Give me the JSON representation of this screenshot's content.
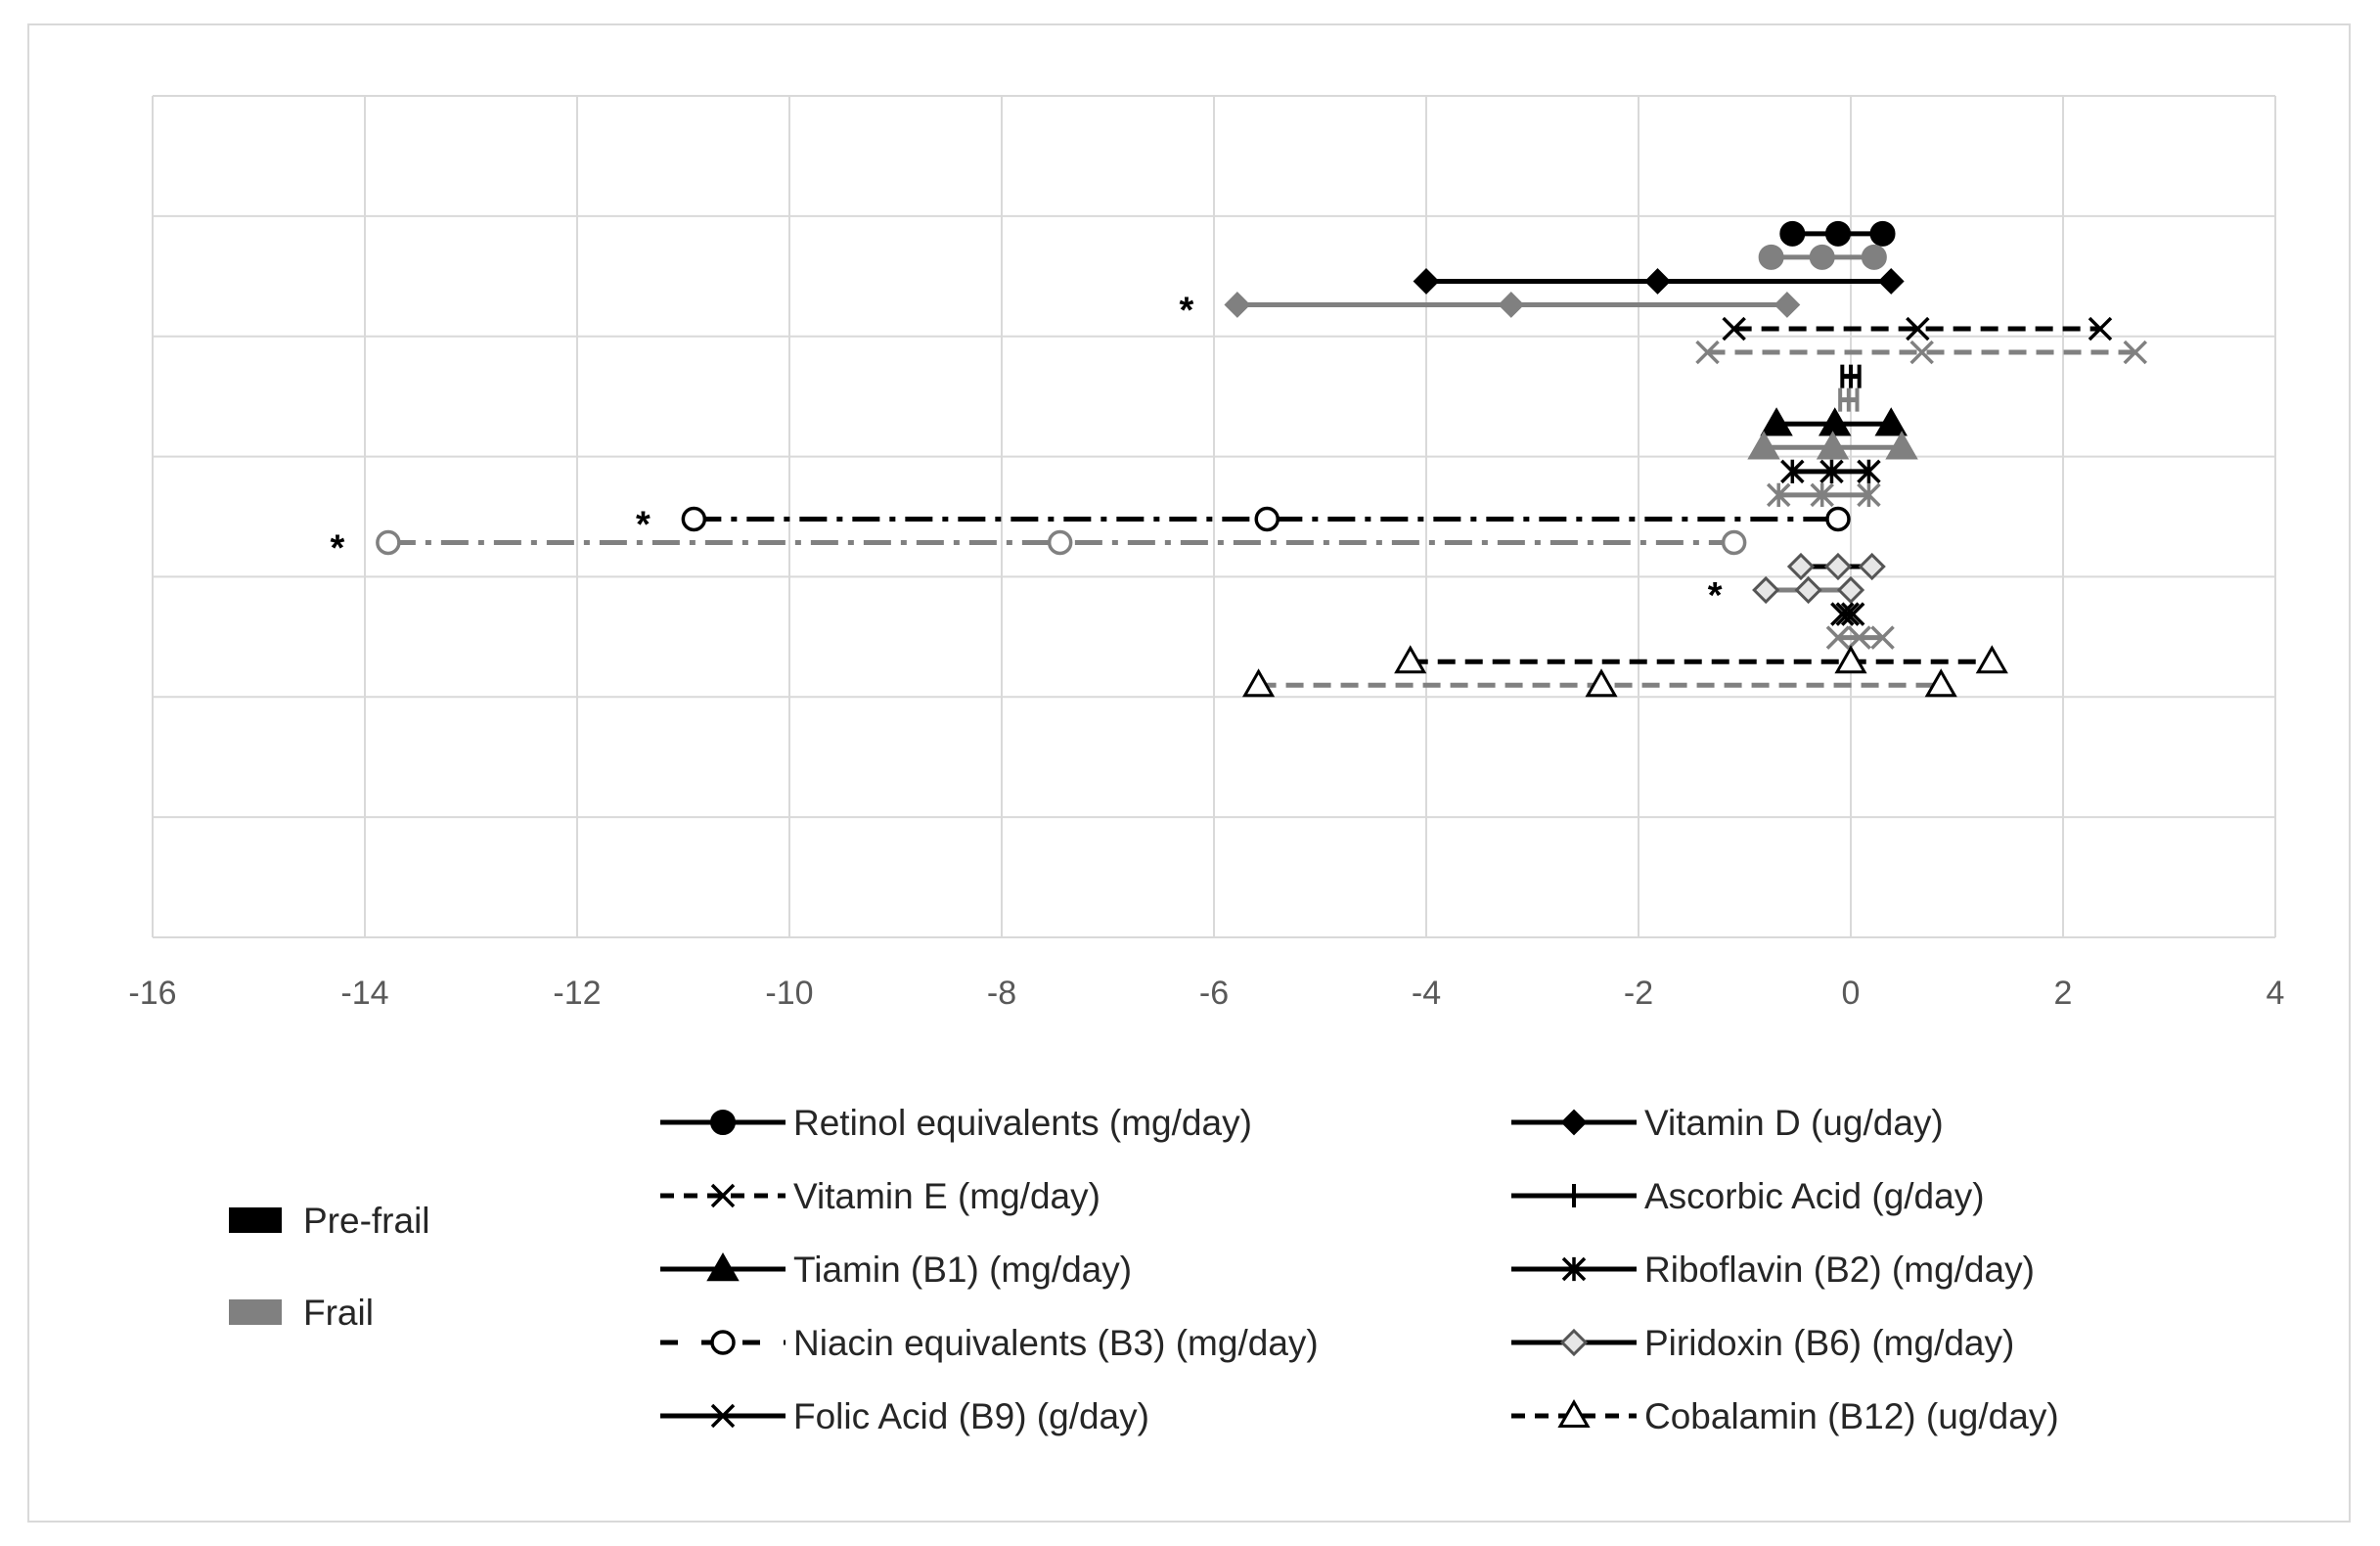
{
  "chart_data": {
    "type": "range-dot",
    "title": "",
    "xlabel": "",
    "ylabel": "",
    "xlim": [
      -16,
      4
    ],
    "x_ticks": [
      "-16",
      "-14",
      "-12",
      "-10",
      "-8",
      "-6",
      "-4",
      "-2",
      "0",
      "2",
      "4"
    ],
    "grid": true,
    "groups": [
      {
        "name": "Pre-frail",
        "color": "#000000"
      },
      {
        "name": "Frail",
        "color": "#808080"
      }
    ],
    "nutrients": [
      {
        "label": "Retinol equivalents (mg/day)",
        "marker": "circle-filled",
        "dash": "solid",
        "pre_frail": {
          "low": -0.55,
          "mean": -0.12,
          "high": 0.3,
          "significant": false
        },
        "frail": {
          "low": -0.75,
          "mean": -0.27,
          "high": 0.22,
          "significant": false
        }
      },
      {
        "label": "Vitamin D (ug/day)",
        "marker": "diamond-filled",
        "dash": "solid",
        "pre_frail": {
          "low": -4.0,
          "mean": -1.82,
          "high": 0.38,
          "significant": false
        },
        "frail": {
          "low": -5.78,
          "mean": -3.2,
          "high": -0.6,
          "significant": true
        }
      },
      {
        "label": "Vitamin E (mg/day)",
        "marker": "x",
        "dash": "dash",
        "pre_frail": {
          "low": -1.1,
          "mean": 0.63,
          "high": 2.35,
          "significant": false
        },
        "frail": {
          "low": -1.35,
          "mean": 0.67,
          "high": 2.68,
          "significant": false
        }
      },
      {
        "label": "Ascorbic Acid (g/day)",
        "marker": "plus",
        "dash": "solid",
        "pre_frail": {
          "low": -0.08,
          "mean": 0.0,
          "high": 0.08,
          "significant": false
        },
        "frail": {
          "low": -0.1,
          "mean": -0.02,
          "high": 0.06,
          "significant": false
        }
      },
      {
        "label": "Tiamin (B1) (mg/day)",
        "marker": "triangle-filled",
        "dash": "solid",
        "pre_frail": {
          "low": -0.7,
          "mean": -0.15,
          "high": 0.38,
          "significant": false
        },
        "frail": {
          "low": -0.82,
          "mean": -0.17,
          "high": 0.48,
          "significant": false
        }
      },
      {
        "label": "Riboflavin (B2) (mg/day)",
        "marker": "asterisk",
        "dash": "solid",
        "pre_frail": {
          "low": -0.55,
          "mean": -0.18,
          "high": 0.17,
          "significant": false
        },
        "frail": {
          "low": -0.68,
          "mean": -0.27,
          "high": 0.17,
          "significant": false
        }
      },
      {
        "label": "Niacin equivalents (B3) (mg/day)",
        "marker": "circle-open",
        "dash": "dashdot",
        "pre_frail": {
          "low": -10.9,
          "mean": -5.5,
          "high": -0.12,
          "significant": true
        },
        "frail": {
          "low": -13.78,
          "mean": -7.45,
          "high": -1.1,
          "significant": true
        }
      },
      {
        "label": "Piridoxin (B6) (mg/day)",
        "marker": "diamond-open",
        "dash": "solid",
        "pre_frail": {
          "low": -0.47,
          "mean": -0.12,
          "high": 0.2,
          "significant": false
        },
        "frail": {
          "low": -0.8,
          "mean": -0.4,
          "high": 0.0,
          "significant": true
        }
      },
      {
        "label": "Folic Acid (B9) (g/day)",
        "marker": "x",
        "dash": "solid",
        "pre_frail": {
          "low": -0.08,
          "mean": -0.03,
          "high": 0.02,
          "significant": false
        },
        "frail": {
          "low": -0.12,
          "mean": 0.08,
          "high": 0.3,
          "significant": false
        }
      },
      {
        "label": "Cobalamin (B12) (ug/day)",
        "marker": "triangle-open",
        "dash": "dash",
        "pre_frail": {
          "low": -4.15,
          "mean": 0.0,
          "high": 1.33,
          "significant": false
        },
        "frail": {
          "low": -5.58,
          "mean": -2.35,
          "high": 0.85,
          "significant": false
        }
      }
    ],
    "significance_marker": "*"
  }
}
